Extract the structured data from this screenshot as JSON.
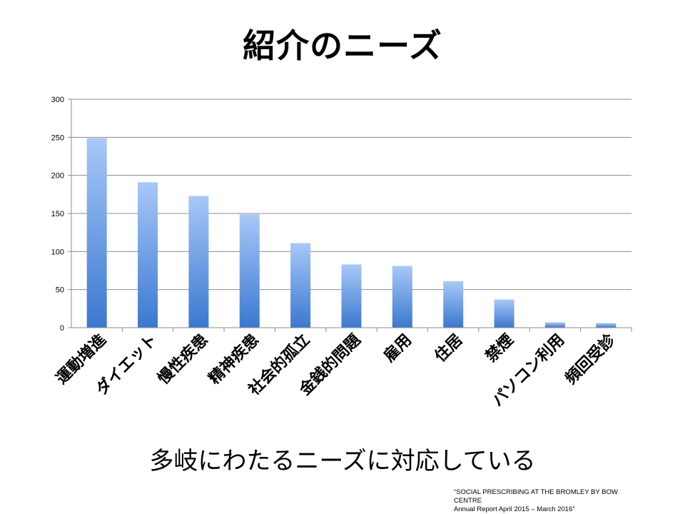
{
  "title": "紹介のニーズ",
  "subtitle": "多岐にわたるニーズに対応している",
  "source": {
    "line1": "“SOCIAL PRESCRIBING AT THE BROMLEY BY BOW",
    "line2": "CENTRE",
    "line3": "Annual Report April 2015 – March 2016”"
  },
  "colors": {
    "bar_top": "#a8c8f8",
    "bar_bottom": "#3a78d0",
    "grid": "#8c8c8c"
  },
  "chart_data": {
    "type": "bar",
    "categories": [
      "運動増進",
      "ダイエット",
      "慢性疾患",
      "精神疾患",
      "社会的孤立",
      "金銭的問題",
      "雇用",
      "住居",
      "禁煙",
      "パソコン利用",
      "頻回受診"
    ],
    "values": [
      249,
      191,
      173,
      149,
      111,
      83,
      81,
      61,
      37,
      7,
      6
    ],
    "ylim": [
      0,
      300
    ],
    "yticks": [
      0,
      50,
      100,
      150,
      200,
      250,
      300
    ],
    "grid": true,
    "xlabel": "",
    "ylabel": ""
  }
}
